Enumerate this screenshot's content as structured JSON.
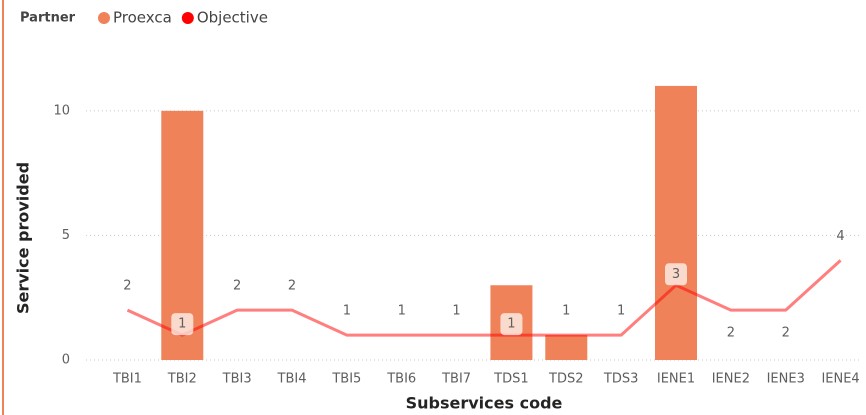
{
  "chart_data": {
    "type": "combo",
    "legend_title": "Partner",
    "x_label": "Subservices code",
    "y_label": "Service provided",
    "categories": [
      "TBI1",
      "TBI2",
      "TBI3",
      "TBI4",
      "TBI5",
      "TBI6",
      "TBI7",
      "TDS1",
      "TDS2",
      "TDS3",
      "IENE1",
      "IENE2",
      "IENE3",
      "IENE4"
    ],
    "series": [
      {
        "name": "Proexca",
        "type": "bar",
        "color": "#F0825A",
        "values": [
          null,
          10,
          null,
          null,
          null,
          null,
          null,
          3,
          1,
          null,
          11,
          null,
          null,
          null
        ]
      },
      {
        "name": "Objective",
        "type": "line",
        "color": "#FF0000",
        "values": [
          2,
          1,
          2,
          2,
          1,
          1,
          1,
          1,
          1,
          1,
          3,
          2,
          2,
          4
        ]
      }
    ],
    "ylim": [
      0,
      12
    ],
    "yticks": [
      0,
      5,
      10
    ],
    "grid": true
  }
}
